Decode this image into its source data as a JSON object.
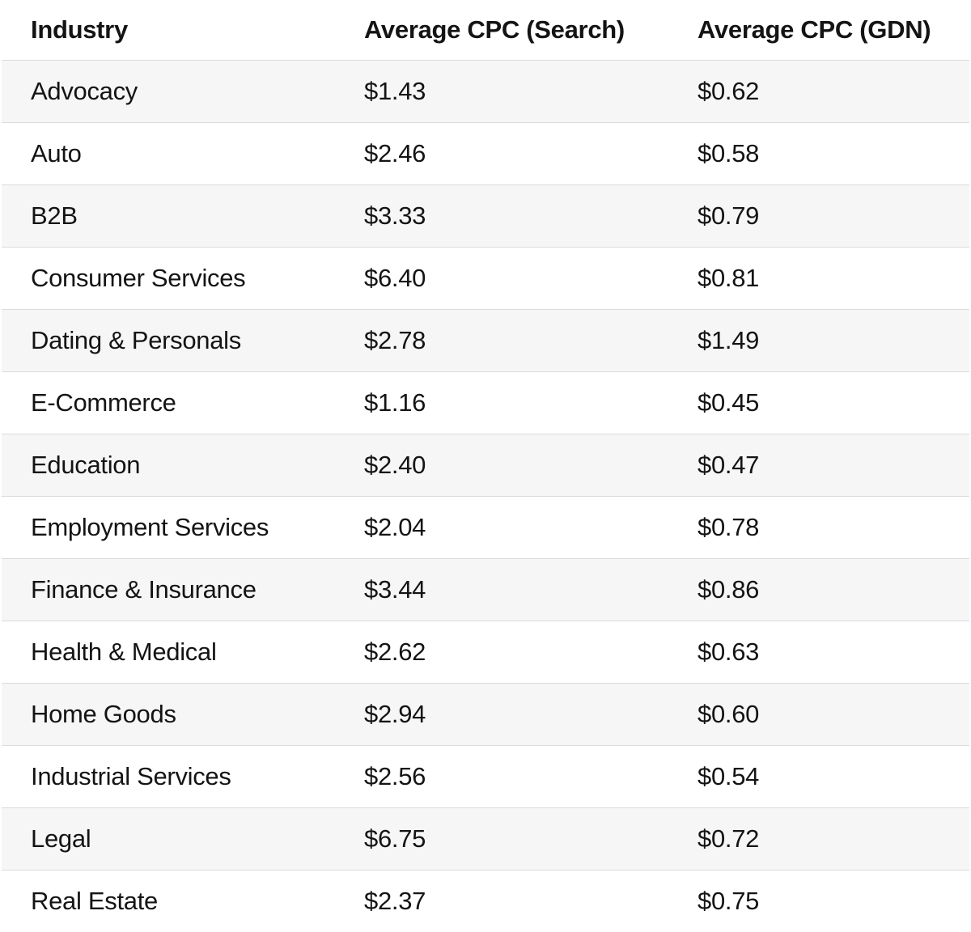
{
  "table": {
    "columns": [
      {
        "label": "Industry"
      },
      {
        "label": "Average CPC (Search)"
      },
      {
        "label": "Average CPC (GDN)"
      }
    ],
    "rows": [
      {
        "industry": "Advocacy",
        "search_cpc": "$1.43",
        "gdn_cpc": "$0.62"
      },
      {
        "industry": "Auto",
        "search_cpc": "$2.46",
        "gdn_cpc": "$0.58"
      },
      {
        "industry": "B2B",
        "search_cpc": "$3.33",
        "gdn_cpc": "$0.79"
      },
      {
        "industry": "Consumer Services",
        "search_cpc": "$6.40",
        "gdn_cpc": "$0.81"
      },
      {
        "industry": "Dating & Personals",
        "search_cpc": "$2.78",
        "gdn_cpc": "$1.49"
      },
      {
        "industry": "E-Commerce",
        "search_cpc": "$1.16",
        "gdn_cpc": "$0.45"
      },
      {
        "industry": "Education",
        "search_cpc": "$2.40",
        "gdn_cpc": "$0.47"
      },
      {
        "industry": "Employment Services",
        "search_cpc": "$2.04",
        "gdn_cpc": "$0.78"
      },
      {
        "industry": "Finance & Insurance",
        "search_cpc": "$3.44",
        "gdn_cpc": "$0.86"
      },
      {
        "industry": "Health & Medical",
        "search_cpc": "$2.62",
        "gdn_cpc": "$0.63"
      },
      {
        "industry": "Home Goods",
        "search_cpc": "$2.94",
        "gdn_cpc": "$0.60"
      },
      {
        "industry": "Industrial Services",
        "search_cpc": "$2.56",
        "gdn_cpc": "$0.54"
      },
      {
        "industry": "Legal",
        "search_cpc": "$6.75",
        "gdn_cpc": "$0.72"
      },
      {
        "industry": "Real Estate",
        "search_cpc": "$2.37",
        "gdn_cpc": "$0.75"
      }
    ],
    "colors": {
      "odd_row_background": "#f6f6f7",
      "even_row_background": "#ffffff",
      "border_color": "#dbdbe0",
      "text_color": "#141414"
    }
  },
  "chart_data": {
    "type": "table",
    "columns": [
      "Industry",
      "Average CPC (Search)",
      "Average CPC (GDN)"
    ],
    "categories": [
      "Advocacy",
      "Auto",
      "B2B",
      "Consumer Services",
      "Dating & Personals",
      "E-Commerce",
      "Education",
      "Employment Services",
      "Finance & Insurance",
      "Health & Medical",
      "Home Goods",
      "Industrial Services",
      "Legal",
      "Real Estate"
    ],
    "series": [
      {
        "name": "Average CPC (Search)",
        "values": [
          1.43,
          2.46,
          3.33,
          6.4,
          2.78,
          1.16,
          2.4,
          2.04,
          3.44,
          2.62,
          2.94,
          2.56,
          6.75,
          2.37
        ]
      },
      {
        "name": "Average CPC (GDN)",
        "values": [
          0.62,
          0.58,
          0.79,
          0.81,
          1.49,
          0.45,
          0.47,
          0.78,
          0.86,
          0.63,
          0.6,
          0.54,
          0.72,
          0.75
        ]
      }
    ],
    "unit": "$",
    "layout": "striped rows, no vertical gridlines, 1px horizontal dividers"
  }
}
